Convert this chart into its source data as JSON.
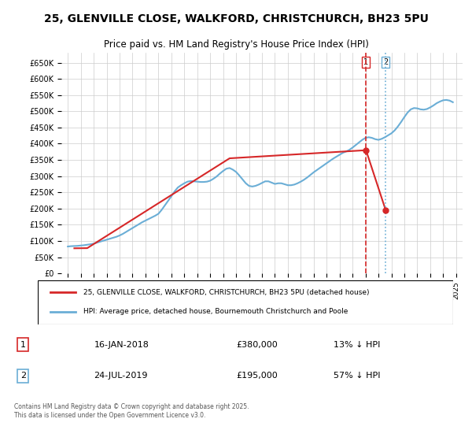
{
  "title": "25, GLENVILLE CLOSE, WALKFORD, CHRISTCHURCH, BH23 5PU",
  "subtitle": "Price paid vs. HM Land Registry's House Price Index (HPI)",
  "legend_line1": "25, GLENVILLE CLOSE, WALKFORD, CHRISTCHURCH, BH23 5PU (detached house)",
  "legend_line2": "HPI: Average price, detached house, Bournemouth Christchurch and Poole",
  "footer": "Contains HM Land Registry data © Crown copyright and database right 2025.\nThis data is licensed under the Open Government Licence v3.0.",
  "transaction1_label": "1",
  "transaction1_date": "16-JAN-2018",
  "transaction1_price": "£380,000",
  "transaction1_hpi": "13% ↓ HPI",
  "transaction2_label": "2",
  "transaction2_date": "24-JUL-2019",
  "transaction2_price": "£195,000",
  "transaction2_hpi": "57% ↓ HPI",
  "vline1_x": 2018.04,
  "vline2_x": 2019.56,
  "point1_x": 2018.04,
  "point1_y": 380000,
  "point2_x": 2019.56,
  "point2_y": 195000,
  "hpi_color": "#6baed6",
  "price_color": "#d62728",
  "vline_color": "#d62728",
  "background_color": "#ffffff",
  "grid_color": "#cccccc",
  "ylim": [
    0,
    680000
  ],
  "xlim": [
    1994.5,
    2025.5
  ],
  "yticks": [
    0,
    50000,
    100000,
    150000,
    200000,
    250000,
    300000,
    350000,
    400000,
    450000,
    500000,
    550000,
    600000,
    650000
  ],
  "xticks": [
    1995,
    1996,
    1997,
    1998,
    1999,
    2000,
    2001,
    2002,
    2003,
    2004,
    2005,
    2006,
    2007,
    2008,
    2009,
    2010,
    2011,
    2012,
    2013,
    2014,
    2015,
    2016,
    2017,
    2018,
    2019,
    2020,
    2021,
    2022,
    2023,
    2024,
    2025
  ],
  "hpi_years": [
    1995.0,
    1995.25,
    1995.5,
    1995.75,
    1996.0,
    1996.25,
    1996.5,
    1996.75,
    1997.0,
    1997.25,
    1997.5,
    1997.75,
    1998.0,
    1998.25,
    1998.5,
    1998.75,
    1999.0,
    1999.25,
    1999.5,
    1999.75,
    2000.0,
    2000.25,
    2000.5,
    2000.75,
    2001.0,
    2001.25,
    2001.5,
    2001.75,
    2002.0,
    2002.25,
    2002.5,
    2002.75,
    2003.0,
    2003.25,
    2003.5,
    2003.75,
    2004.0,
    2004.25,
    2004.5,
    2004.75,
    2005.0,
    2005.25,
    2005.5,
    2005.75,
    2006.0,
    2006.25,
    2006.5,
    2006.75,
    2007.0,
    2007.25,
    2007.5,
    2007.75,
    2008.0,
    2008.25,
    2008.5,
    2008.75,
    2009.0,
    2009.25,
    2009.5,
    2009.75,
    2010.0,
    2010.25,
    2010.5,
    2010.75,
    2011.0,
    2011.25,
    2011.5,
    2011.75,
    2012.0,
    2012.25,
    2012.5,
    2012.75,
    2013.0,
    2013.25,
    2013.5,
    2013.75,
    2014.0,
    2014.25,
    2014.5,
    2014.75,
    2015.0,
    2015.25,
    2015.5,
    2015.75,
    2016.0,
    2016.25,
    2016.5,
    2016.75,
    2017.0,
    2017.25,
    2017.5,
    2017.75,
    2018.0,
    2018.25,
    2018.5,
    2018.75,
    2019.0,
    2019.25,
    2019.5,
    2019.75,
    2020.0,
    2020.25,
    2020.5,
    2020.75,
    2021.0,
    2021.25,
    2021.5,
    2021.75,
    2022.0,
    2022.25,
    2022.5,
    2022.75,
    2023.0,
    2023.25,
    2023.5,
    2023.75,
    2024.0,
    2024.25,
    2024.5,
    2024.75
  ],
  "hpi_values": [
    83000,
    84000,
    84500,
    85000,
    86000,
    87000,
    88500,
    90000,
    92000,
    95000,
    98000,
    101000,
    104000,
    107000,
    110000,
    113000,
    117000,
    122000,
    128000,
    134000,
    140000,
    146000,
    152000,
    158000,
    163000,
    168000,
    173000,
    178000,
    184000,
    196000,
    210000,
    224000,
    238000,
    253000,
    265000,
    272000,
    278000,
    283000,
    285000,
    284000,
    283000,
    282000,
    282000,
    283000,
    286000,
    292000,
    299000,
    308000,
    316000,
    323000,
    325000,
    320000,
    313000,
    302000,
    290000,
    278000,
    270000,
    268000,
    270000,
    274000,
    279000,
    284000,
    284000,
    280000,
    276000,
    278000,
    278000,
    275000,
    272000,
    272000,
    274000,
    278000,
    283000,
    289000,
    296000,
    304000,
    312000,
    319000,
    326000,
    333000,
    340000,
    347000,
    354000,
    360000,
    366000,
    372000,
    376000,
    381000,
    388000,
    396000,
    404000,
    412000,
    418000,
    420000,
    418000,
    414000,
    412000,
    415000,
    420000,
    426000,
    432000,
    441000,
    453000,
    467000,
    482000,
    496000,
    506000,
    510000,
    509000,
    506000,
    505000,
    507000,
    512000,
    518000,
    525000,
    530000,
    534000,
    535000,
    533000,
    528000
  ],
  "price_years": [
    1995.5,
    1996.5,
    2007.5,
    2018.04,
    2019.56
  ],
  "price_values": [
    77500,
    78000,
    355000,
    380000,
    195000
  ]
}
